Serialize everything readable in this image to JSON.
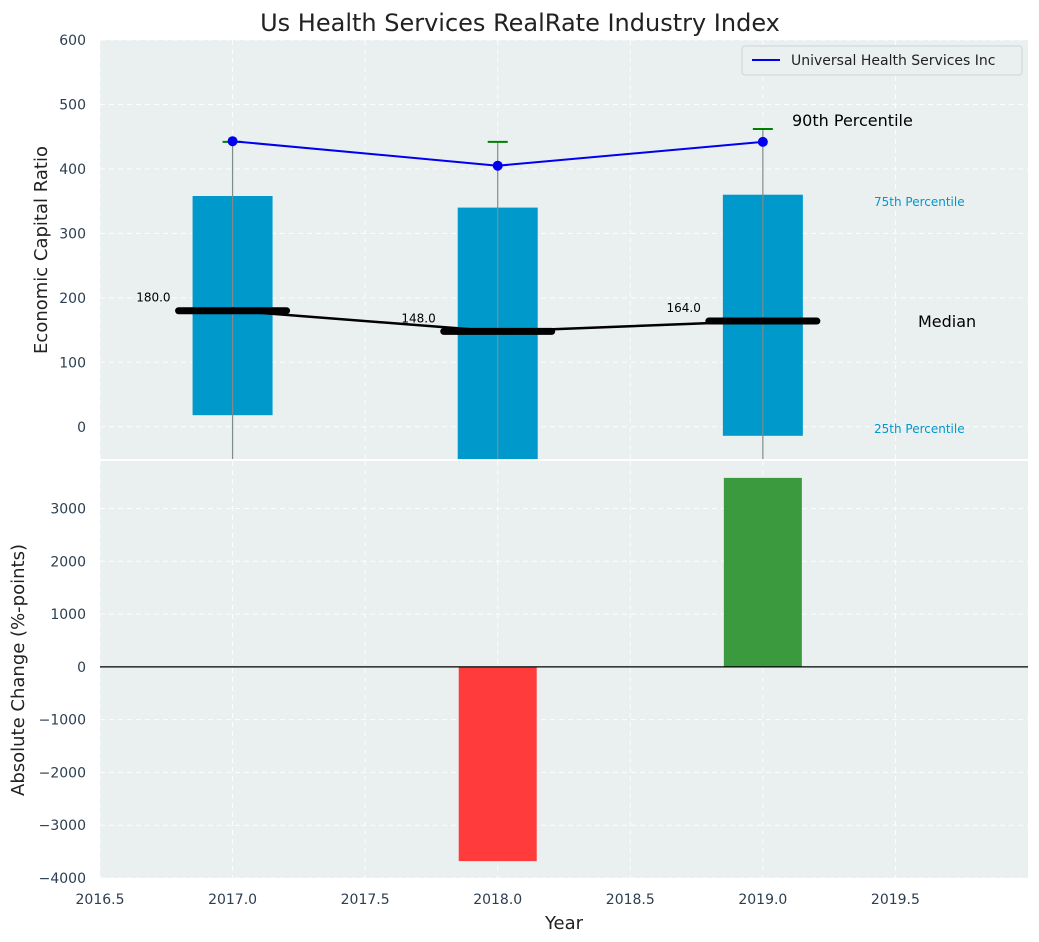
{
  "chart_data": [
    {
      "type": "box",
      "title": "Us Health Services RealRate Industry Index",
      "ylabel": "Economic Capital Ratio",
      "xlabel": "",
      "xlim": [
        2016.5,
        2020.0
      ],
      "ylim": [
        -50,
        600
      ],
      "yticks": [
        0,
        100,
        200,
        300,
        400,
        500,
        600
      ],
      "grid": true,
      "legend_position": "top-right",
      "boxes": [
        {
          "x": 2017,
          "p25": 18,
          "p75": 358,
          "median": 180,
          "p90": 442,
          "median_label": "180.0"
        },
        {
          "x": 2018,
          "p25": -50,
          "p75": 340,
          "median": 148,
          "p90": 442,
          "median_label": "148.0"
        },
        {
          "x": 2019,
          "p25": -14,
          "p75": 360,
          "median": 164,
          "p90": 462,
          "median_label": "164.0"
        }
      ],
      "series": [
        {
          "name": "Universal Health Services Inc",
          "color": "#0000ee",
          "x": [
            2017,
            2018,
            2019
          ],
          "values": [
            443,
            405,
            442
          ]
        }
      ],
      "annotations": {
        "p90": "90th Percentile",
        "p75": "75th Percentile",
        "median": "Median",
        "p25": "25th Percentile"
      },
      "colors": {
        "box": "#0099cc",
        "median": "#000000",
        "p90": "#008000",
        "label": "#0099cc"
      }
    },
    {
      "type": "bar",
      "ylabel": "Absolute Change (%-points)",
      "xlabel": "Year",
      "xlim": [
        2016.5,
        2020.0
      ],
      "ylim": [
        -4000,
        3900
      ],
      "yticks": [
        -4000,
        -3000,
        -2000,
        -1000,
        0,
        1000,
        2000,
        3000
      ],
      "xticks": [
        2016.5,
        2017.0,
        2017.5,
        2018.0,
        2018.5,
        2019.0,
        2019.5
      ],
      "xtick_labels": [
        "2016.5",
        "2017.0",
        "2017.5",
        "2018.0",
        "2018.5",
        "2019.0",
        "2019.5"
      ],
      "grid": true,
      "bars": [
        {
          "x": 2018,
          "value": -3680,
          "color": "#ff3b3b"
        },
        {
          "x": 2019,
          "value": 3580,
          "color": "#3a9a3d"
        }
      ]
    }
  ]
}
